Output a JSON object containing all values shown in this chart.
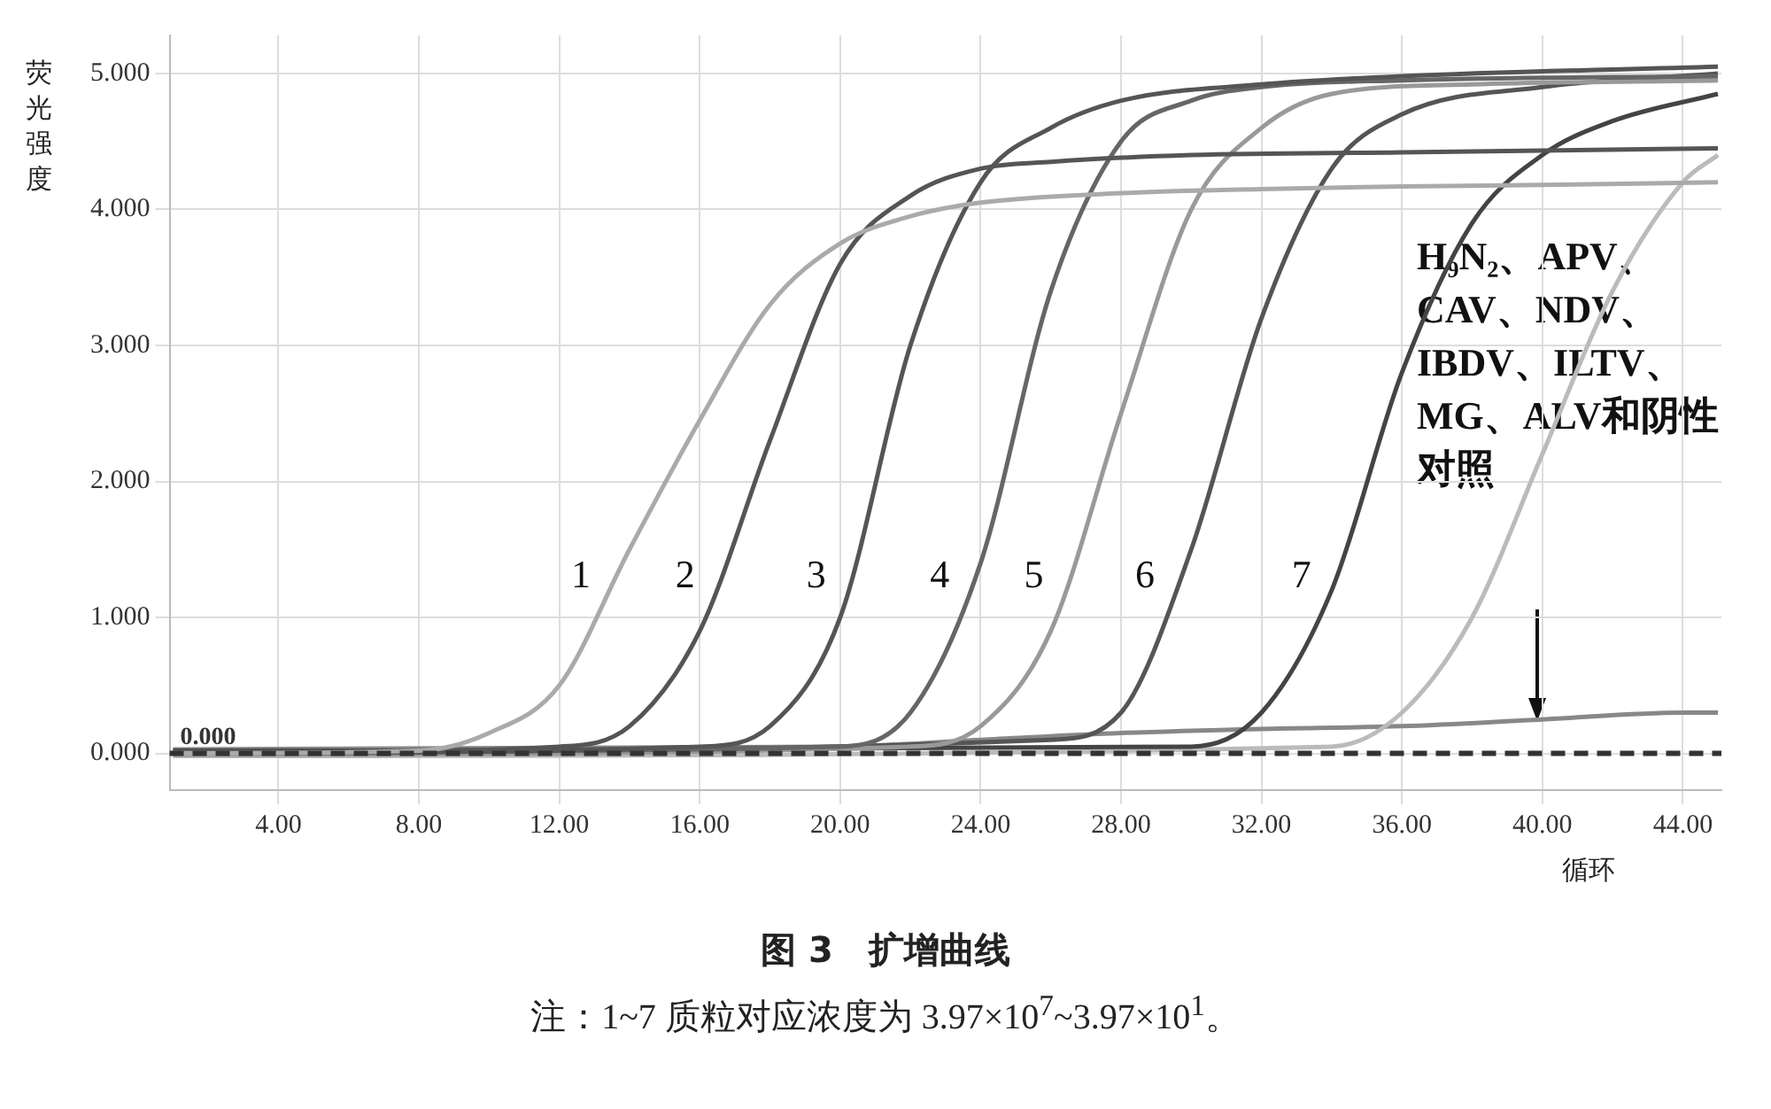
{
  "chart_data": {
    "type": "line",
    "title": "图 3　扩增曲线",
    "xlabel": "循环",
    "ylabel": "荧光强度",
    "xlim": [
      0.9,
      45.1
    ],
    "ylim": [
      -0.27,
      5.28
    ],
    "xticks": [
      {
        "value": 4,
        "label": "4.00"
      },
      {
        "value": 8,
        "label": "8.00"
      },
      {
        "value": 12,
        "label": "12.00"
      },
      {
        "value": 16,
        "label": "16.00"
      },
      {
        "value": 20,
        "label": "20.00"
      },
      {
        "value": 24,
        "label": "24.00"
      },
      {
        "value": 28,
        "label": "28.00"
      },
      {
        "value": 32,
        "label": "32.00"
      },
      {
        "value": 36,
        "label": "36.00"
      },
      {
        "value": 40,
        "label": "40.00"
      },
      {
        "value": 44,
        "label": "44.00"
      }
    ],
    "yticks": [
      {
        "value": 0,
        "label": "0.000"
      },
      {
        "value": 1,
        "label": "1.000"
      },
      {
        "value": 2,
        "label": "2.000"
      },
      {
        "value": 3,
        "label": "3.000"
      },
      {
        "value": 4,
        "label": "4.000"
      },
      {
        "value": 5,
        "label": "5.000"
      }
    ],
    "grid": true,
    "legend": false,
    "marker": "none",
    "line_style": "solid",
    "series": [
      {
        "name": "1",
        "color": "#aaaaaa",
        "x": [
          1,
          8,
          10,
          12,
          14,
          16,
          18,
          20,
          22,
          24,
          28,
          32,
          36,
          40,
          45
        ],
        "values": [
          0,
          0.02,
          0.15,
          0.5,
          1.5,
          2.45,
          3.3,
          3.75,
          3.95,
          4.05,
          4.12,
          4.15,
          4.17,
          4.18,
          4.2
        ]
      },
      {
        "name": "2",
        "color": "#555555",
        "x": [
          1,
          12,
          14,
          16,
          18,
          20,
          22,
          24,
          26,
          30,
          36,
          45
        ],
        "values": [
          0,
          0.05,
          0.2,
          0.9,
          2.3,
          3.6,
          4.1,
          4.3,
          4.35,
          4.4,
          4.42,
          4.45
        ]
      },
      {
        "name": "3",
        "color": "#555555",
        "x": [
          1,
          16,
          18,
          20,
          22,
          24,
          26,
          28,
          32,
          36,
          45
        ],
        "values": [
          0,
          0.05,
          0.2,
          1.0,
          3.0,
          4.2,
          4.6,
          4.8,
          4.92,
          4.98,
          5.05
        ]
      },
      {
        "name": "4",
        "color": "#666666",
        "x": [
          1,
          20,
          22,
          24,
          26,
          28,
          30,
          32,
          36,
          45
        ],
        "values": [
          0.01,
          0.05,
          0.3,
          1.4,
          3.4,
          4.5,
          4.8,
          4.9,
          4.95,
          4.98
        ]
      },
      {
        "name": "5",
        "color": "#999999",
        "x": [
          1,
          22,
          24,
          26,
          28,
          30,
          32,
          34,
          38,
          45
        ],
        "values": [
          -0.01,
          0.05,
          0.2,
          0.9,
          2.5,
          4.0,
          4.6,
          4.85,
          4.92,
          4.95
        ]
      },
      {
        "name": "6",
        "color": "#555555",
        "x": [
          1,
          26,
          28,
          30,
          32,
          34,
          36,
          40,
          45
        ],
        "values": [
          0,
          0.1,
          0.3,
          1.5,
          3.2,
          4.3,
          4.7,
          4.9,
          5.0
        ]
      },
      {
        "name": "7",
        "color": "#444444",
        "x": [
          1,
          30,
          32,
          34,
          36,
          38,
          40,
          42,
          45
        ],
        "values": [
          0.02,
          0.05,
          0.3,
          1.2,
          2.8,
          3.9,
          4.4,
          4.65,
          4.85
        ]
      },
      {
        "color": "#bbbbbb",
        "x": [
          1,
          34,
          36,
          38,
          40,
          42,
          44,
          45
        ],
        "values": [
          -0.02,
          0.05,
          0.3,
          1.0,
          2.2,
          3.4,
          4.2,
          4.4
        ]
      },
      {
        "color": "#888888",
        "x": [
          1,
          20,
          24,
          28,
          32,
          36,
          40,
          44,
          45
        ],
        "values": [
          0.03,
          0.05,
          0.1,
          0.15,
          0.18,
          0.2,
          0.25,
          0.3,
          0.3
        ]
      }
    ],
    "ref_lines": [
      {
        "axis": "y",
        "value": 0,
        "label": "0.000",
        "color": "#333333",
        "line_style": "dashed"
      }
    ],
    "annotations": [
      "H₉N₂、APV、CAV、NDV、IBDV、ILTV、MG、ALV和阴性对照",
      "注：1~7 质粒对应浓度为 3.97×10$^{7}$~3.97×10$^{1}$。"
    ]
  }
}
